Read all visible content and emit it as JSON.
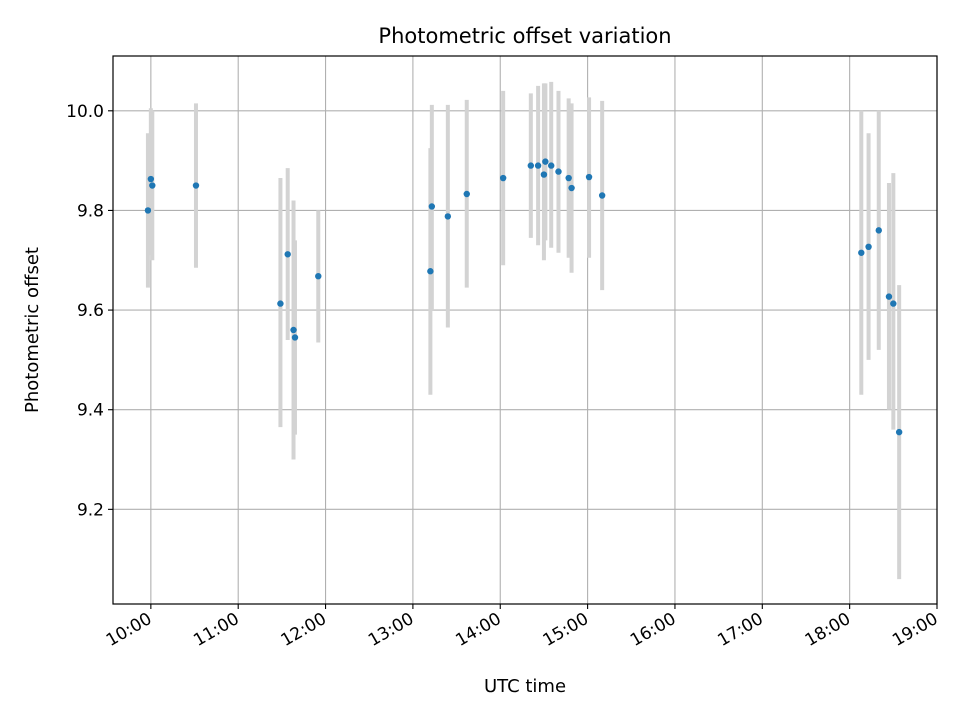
{
  "chart_data": {
    "type": "scatter",
    "title": "Photometric offset variation",
    "xlabel": "UTC time",
    "ylabel": "Photometric offset",
    "x_axis_kind": "time",
    "x_ticks": [
      "10:00",
      "11:00",
      "12:00",
      "13:00",
      "14:00",
      "15:00",
      "16:00",
      "17:00",
      "18:00",
      "19:00"
    ],
    "xlim": [
      "09:34",
      "19:00"
    ],
    "y_ticks": [
      "9.2",
      "9.4",
      "9.6",
      "9.8",
      "10.0"
    ],
    "ylim": [
      9.01,
      10.11
    ],
    "grid": true,
    "marker_color": "#1f77b4",
    "errorbar_color": "#d3d3d3",
    "points": [
      {
        "x": "09:58",
        "y": 9.8,
        "ylo": 9.645,
        "yhi": 9.955
      },
      {
        "x": "10:00",
        "y": 9.863,
        "ylo": 9.71,
        "yhi": 10.005
      },
      {
        "x": "10:01",
        "y": 9.85,
        "ylo": 9.7,
        "yhi": 10.0
      },
      {
        "x": "10:31",
        "y": 9.85,
        "ylo": 9.685,
        "yhi": 10.015
      },
      {
        "x": "11:29",
        "y": 9.613,
        "ylo": 9.365,
        "yhi": 9.865
      },
      {
        "x": "11:34",
        "y": 9.712,
        "ylo": 9.54,
        "yhi": 9.885
      },
      {
        "x": "11:38",
        "y": 9.56,
        "ylo": 9.3,
        "yhi": 9.82
      },
      {
        "x": "11:39",
        "y": 9.545,
        "ylo": 9.35,
        "yhi": 9.74
      },
      {
        "x": "11:55",
        "y": 9.668,
        "ylo": 9.535,
        "yhi": 9.8
      },
      {
        "x": "13:12",
        "y": 9.678,
        "ylo": 9.43,
        "yhi": 9.925
      },
      {
        "x": "13:13",
        "y": 9.808,
        "ylo": 9.6,
        "yhi": 10.012
      },
      {
        "x": "13:24",
        "y": 9.788,
        "ylo": 9.565,
        "yhi": 10.012
      },
      {
        "x": "13:37",
        "y": 9.833,
        "ylo": 9.645,
        "yhi": 10.022
      },
      {
        "x": "14:02",
        "y": 9.865,
        "ylo": 9.69,
        "yhi": 10.04
      },
      {
        "x": "14:21",
        "y": 9.89,
        "ylo": 9.745,
        "yhi": 10.035
      },
      {
        "x": "14:26",
        "y": 9.89,
        "ylo": 9.73,
        "yhi": 10.05
      },
      {
        "x": "14:30",
        "y": 9.872,
        "ylo": 9.7,
        "yhi": 10.055
      },
      {
        "x": "14:31",
        "y": 9.898,
        "ylo": 9.74,
        "yhi": 10.055
      },
      {
        "x": "14:35",
        "y": 9.89,
        "ylo": 9.725,
        "yhi": 10.058
      },
      {
        "x": "14:40",
        "y": 9.878,
        "ylo": 9.715,
        "yhi": 10.04
      },
      {
        "x": "14:47",
        "y": 9.865,
        "ylo": 9.705,
        "yhi": 10.025
      },
      {
        "x": "14:49",
        "y": 9.845,
        "ylo": 9.675,
        "yhi": 10.015
      },
      {
        "x": "15:01",
        "y": 9.867,
        "ylo": 9.705,
        "yhi": 10.027
      },
      {
        "x": "15:10",
        "y": 9.83,
        "ylo": 9.64,
        "yhi": 10.02
      },
      {
        "x": "18:08",
        "y": 9.715,
        "ylo": 9.43,
        "yhi": 10.0
      },
      {
        "x": "18:13",
        "y": 9.727,
        "ylo": 9.5,
        "yhi": 9.955
      },
      {
        "x": "18:20",
        "y": 9.76,
        "ylo": 9.52,
        "yhi": 10.0
      },
      {
        "x": "18:27",
        "y": 9.627,
        "ylo": 9.4,
        "yhi": 9.855
      },
      {
        "x": "18:30",
        "y": 9.613,
        "ylo": 9.36,
        "yhi": 9.875
      },
      {
        "x": "18:34",
        "y": 9.355,
        "ylo": 9.06,
        "yhi": 9.65
      }
    ]
  }
}
